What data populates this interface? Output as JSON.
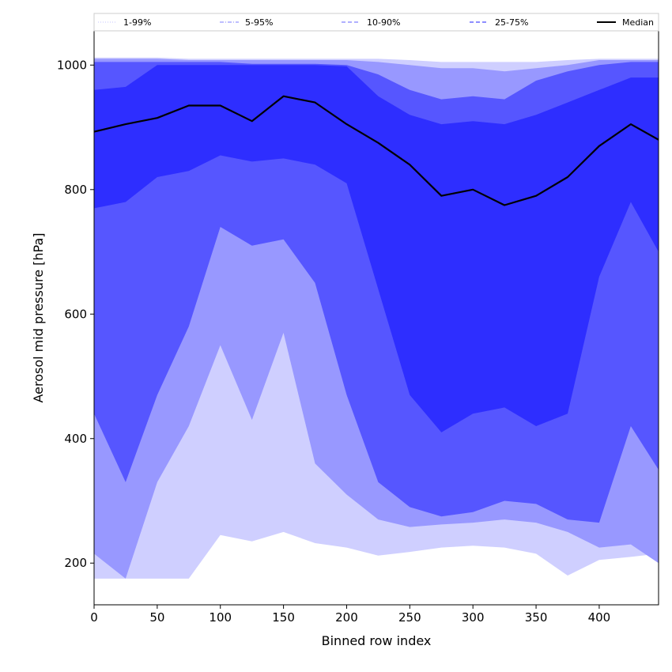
{
  "chart_data": {
    "type": "area",
    "title": "",
    "xlabel": "Binned row index",
    "ylabel": "Aerosol mid pressure [hPa]",
    "xlim": [
      0,
      447
    ],
    "ylim": [
      133,
      1055
    ],
    "floor_value": 175,
    "xticks": [
      0,
      50,
      100,
      150,
      200,
      250,
      300,
      350,
      400
    ],
    "yticks": [
      200,
      400,
      600,
      800,
      1000
    ],
    "grid": false,
    "legend_position": "top",
    "colors": {
      "band_1_99": "#cfcfff",
      "band_5_95": "#9898ff",
      "band_10_90": "#5656ff",
      "band_25_75": "#2e2eff",
      "median": "#000000"
    },
    "legend": [
      {
        "label": "1-99%",
        "style": "dotted",
        "color": "#cfcfff"
      },
      {
        "label": "5-95%",
        "style": "dashdot",
        "color": "#9898ff"
      },
      {
        "label": "10-90%",
        "style": "dashed",
        "color": "#8080ff"
      },
      {
        "label": "25-75%",
        "style": "dashed",
        "color": "#4a4aff"
      },
      {
        "label": "Median",
        "style": "solid",
        "color": "#000000"
      }
    ],
    "x": [
      0,
      25,
      50,
      75,
      100,
      125,
      150,
      175,
      200,
      225,
      250,
      275,
      300,
      325,
      350,
      375,
      400,
      425,
      447
    ],
    "series": [
      {
        "name": "1-99%",
        "lower": [
          175,
          175,
          175,
          175,
          245,
          235,
          250,
          232,
          225,
          212,
          218,
          225,
          228,
          225,
          215,
          180,
          205,
          210,
          215
        ],
        "upper": [
          1012,
          1012,
          1012,
          1010,
          1010,
          1010,
          1010,
          1010,
          1010,
          1010,
          1008,
          1005,
          1005,
          1005,
          1005,
          1008,
          1010,
          1010,
          1010
        ]
      },
      {
        "name": "5-95%",
        "lower": [
          215,
          175,
          330,
          420,
          550,
          430,
          570,
          360,
          310,
          270,
          258,
          262,
          265,
          270,
          265,
          250,
          225,
          230,
          200
        ],
        "upper": [
          1010,
          1010,
          1010,
          1008,
          1008,
          1008,
          1008,
          1008,
          1008,
          1005,
          1000,
          995,
          995,
          990,
          995,
          1000,
          1008,
          1008,
          1008
        ]
      },
      {
        "name": "10-90%",
        "lower": [
          440,
          330,
          470,
          580,
          740,
          710,
          720,
          650,
          470,
          330,
          290,
          275,
          282,
          300,
          295,
          270,
          265,
          420,
          350
        ],
        "upper": [
          1005,
          1005,
          1005,
          1005,
          1005,
          1002,
          1002,
          1002,
          1000,
          985,
          960,
          945,
          950,
          945,
          975,
          990,
          1000,
          1005,
          1005
        ]
      },
      {
        "name": "25-75%",
        "lower": [
          770,
          780,
          820,
          830,
          855,
          845,
          850,
          840,
          810,
          640,
          470,
          410,
          440,
          450,
          420,
          440,
          660,
          780,
          700
        ],
        "upper": [
          960,
          965,
          1000,
          1000,
          1000,
          1000,
          1000,
          1000,
          998,
          950,
          920,
          905,
          910,
          905,
          920,
          940,
          960,
          980,
          980
        ]
      },
      {
        "name": "Median",
        "values": [
          893,
          905,
          915,
          935,
          935,
          910,
          950,
          940,
          905,
          875,
          840,
          790,
          800,
          775,
          790,
          820,
          870,
          905,
          880
        ]
      }
    ]
  }
}
